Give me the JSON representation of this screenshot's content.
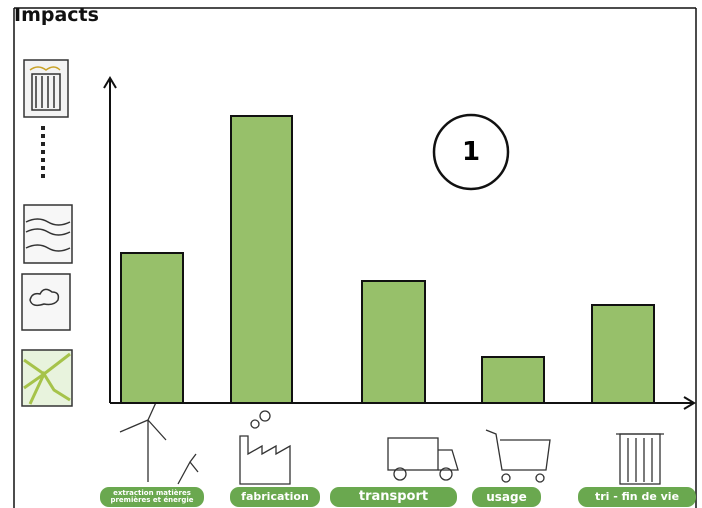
{
  "chart_data": {
    "type": "bar",
    "title": "Impacts",
    "annotation": "1",
    "categories": [
      "extraction matières premières et énergie",
      "fabrication",
      "transport",
      "usage",
      "tri - fin de vie"
    ],
    "values": [
      150,
      287,
      122,
      46,
      98
    ],
    "color": "#97c06a",
    "ylim": [
      0,
      325
    ]
  }
}
